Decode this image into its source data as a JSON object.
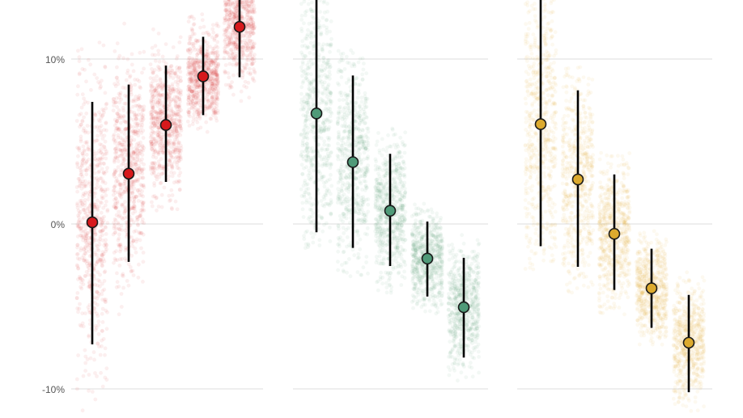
{
  "chart_data": {
    "type": "scatter",
    "title": "",
    "xlabel": "",
    "ylabel": "",
    "y_unit": "percent",
    "ylim": [
      -11.5,
      13.5
    ],
    "y_ticks": [
      10,
      0,
      -10
    ],
    "y_tick_labels": [
      "10%",
      "0%",
      "-10%"
    ],
    "grid": true,
    "legend": "none",
    "panels": [
      {
        "color": "#d7191c",
        "groups": [
          {
            "estimate": 0.1,
            "low": -7.3,
            "high": 7.4,
            "cloud_low": -11.5,
            "cloud_high": 11.5
          },
          {
            "estimate": 3.05,
            "low": -2.3,
            "high": 8.45,
            "cloud_low": -5.5,
            "cloud_high": 12.2
          },
          {
            "estimate": 6.0,
            "low": 2.55,
            "high": 9.6,
            "cloud_low": 0.8,
            "cloud_high": 11.8
          },
          {
            "estimate": 8.95,
            "low": 6.6,
            "high": 11.35,
            "cloud_low": 5.3,
            "cloud_high": 12.8
          },
          {
            "estimate": 11.95,
            "low": 8.9,
            "high": 14.5,
            "cloud_low": 7.4,
            "cloud_high": 14.5
          }
        ]
      },
      {
        "color": "#4f9a78",
        "groups": [
          {
            "estimate": 6.7,
            "low": -0.5,
            "high": 14.5,
            "cloud_low": -1.5,
            "cloud_high": 14.5
          },
          {
            "estimate": 3.75,
            "low": -1.45,
            "high": 9.0,
            "cloud_low": -3.2,
            "cloud_high": 10.8
          },
          {
            "estimate": 0.8,
            "low": -2.55,
            "high": 4.25,
            "cloud_low": -4.2,
            "cloud_high": 5.8
          },
          {
            "estimate": -2.1,
            "low": -4.4,
            "high": 0.15,
            "cloud_low": -5.6,
            "cloud_high": 1.3
          },
          {
            "estimate": -5.05,
            "low": -8.1,
            "high": -2.05,
            "cloud_low": -9.6,
            "cloud_high": -0.6
          }
        ]
      },
      {
        "color": "#dcaa2e",
        "groups": [
          {
            "estimate": 6.05,
            "low": -1.35,
            "high": 13.65,
            "cloud_low": -3.0,
            "cloud_high": 14.5
          },
          {
            "estimate": 2.7,
            "low": -2.6,
            "high": 8.1,
            "cloud_low": -4.3,
            "cloud_high": 9.8
          },
          {
            "estimate": -0.6,
            "low": -4.0,
            "high": 3.0,
            "cloud_low": -5.5,
            "cloud_high": 4.5
          },
          {
            "estimate": -3.9,
            "low": -6.3,
            "high": -1.5,
            "cloud_low": -7.4,
            "cloud_high": -0.4
          },
          {
            "estimate": -7.2,
            "low": -10.2,
            "high": -4.3,
            "cloud_low": -11.5,
            "cloud_high": -2.8
          }
        ]
      }
    ]
  }
}
